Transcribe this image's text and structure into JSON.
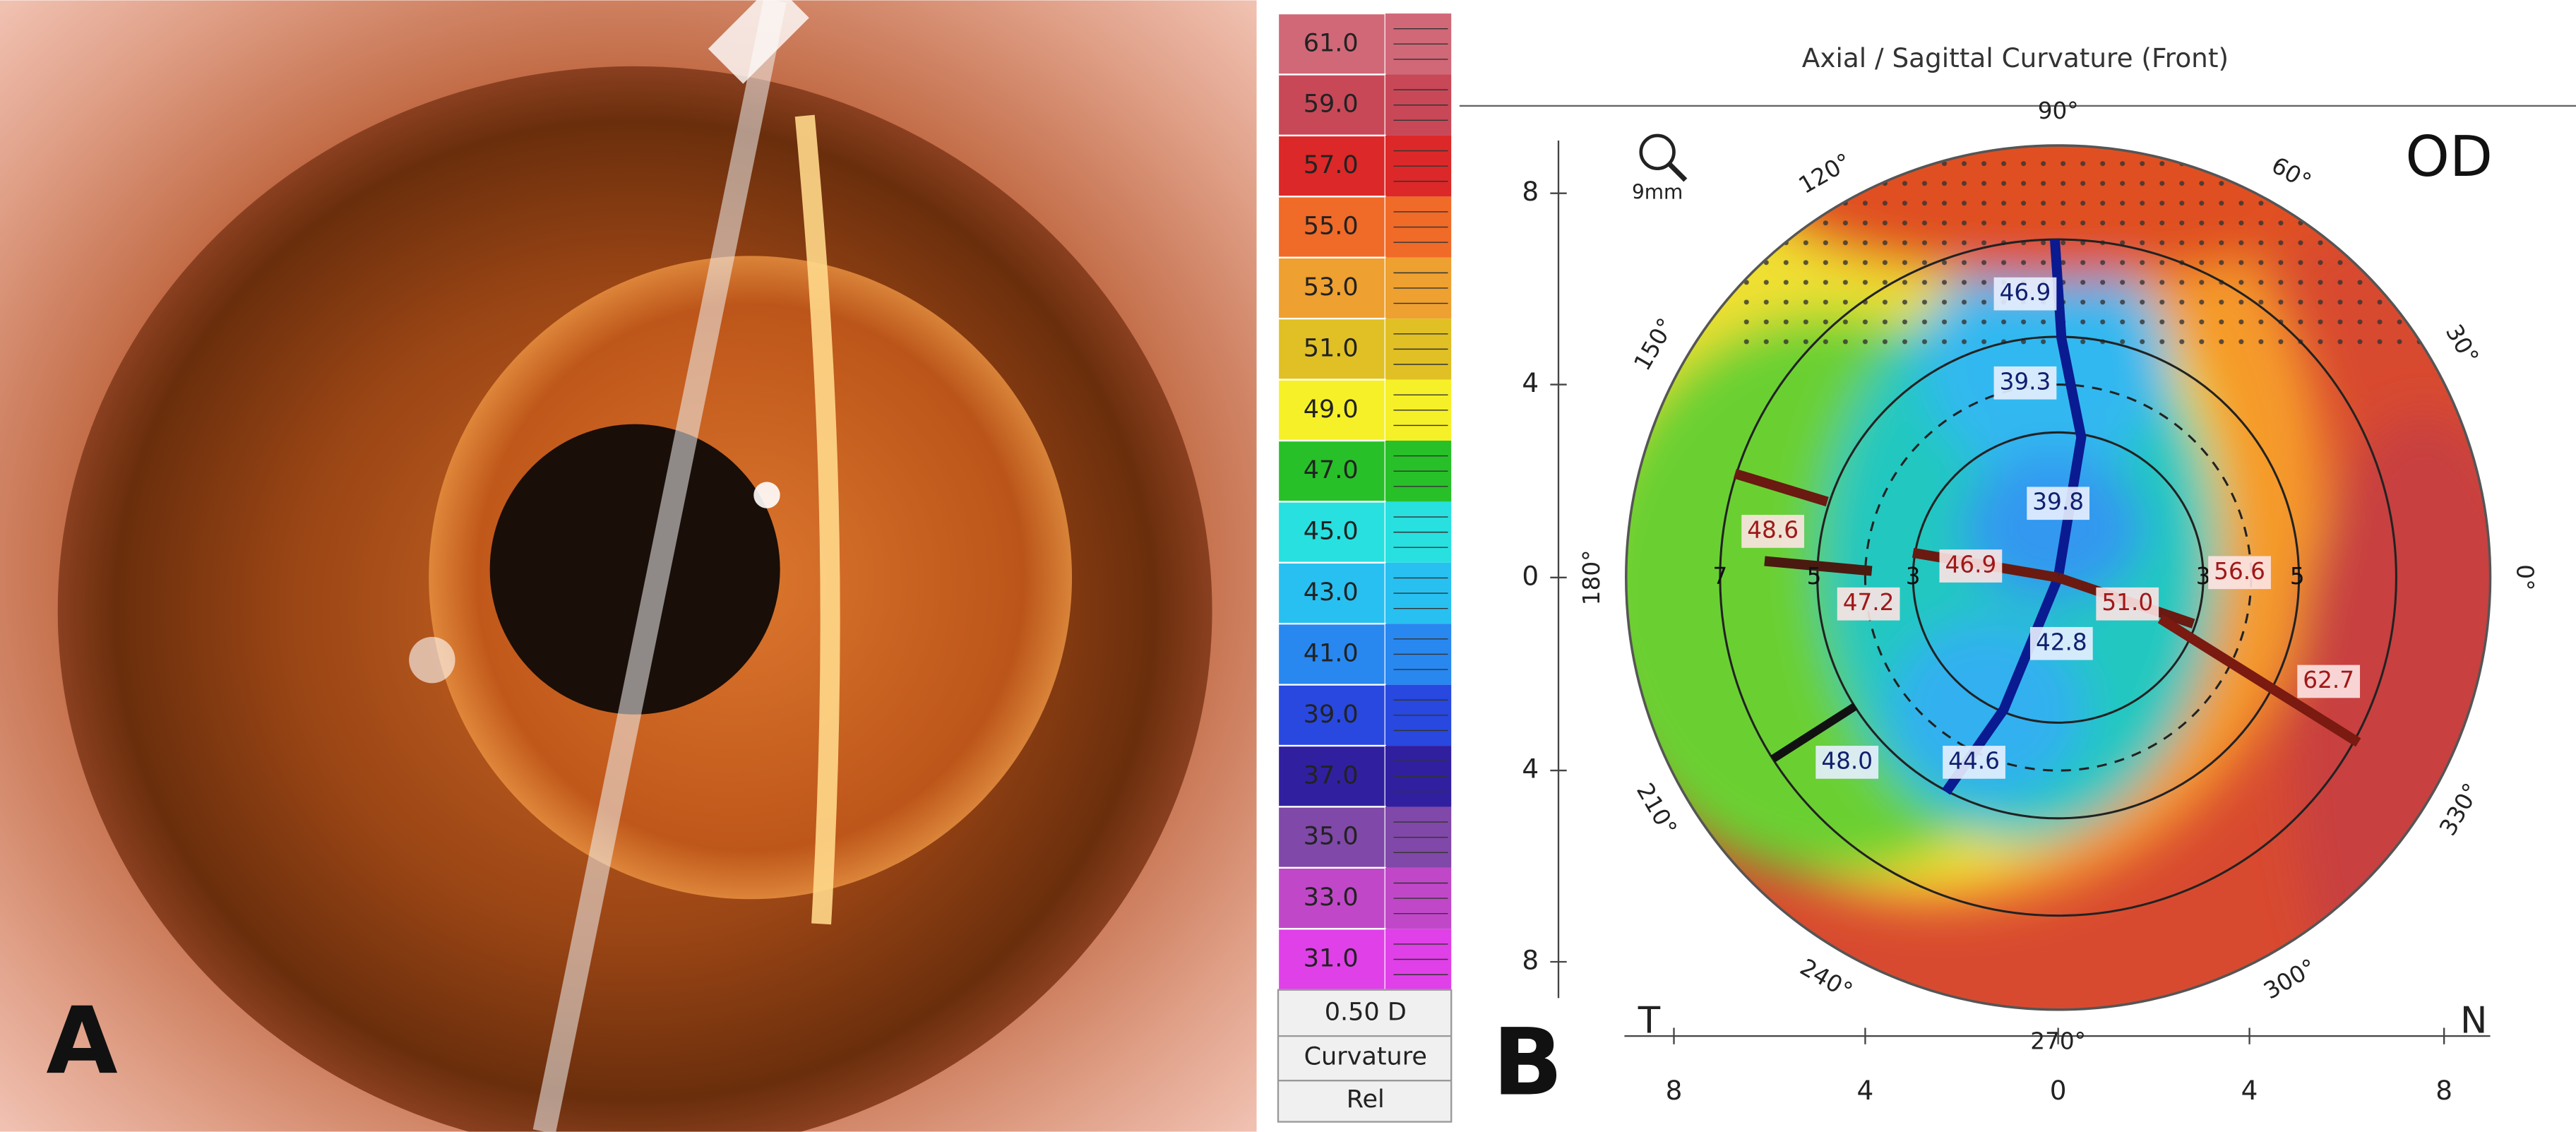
{
  "panel_a": {
    "label": "A"
  },
  "panel_b": {
    "label": "B",
    "title": "Axial / Sagittal Curvature (Front)",
    "zoom": "9mm",
    "eye": "OD",
    "scale": {
      "labels": [
        "61.0",
        "59.0",
        "57.0",
        "55.0",
        "53.0",
        "51.0",
        "49.0",
        "47.0",
        "45.0",
        "43.0",
        "41.0",
        "39.0",
        "37.0",
        "35.0",
        "33.0",
        "31.0"
      ],
      "step": "0.50 D",
      "type": "Curvature",
      "mode": "Rel"
    },
    "angles": [
      "90°",
      "120°",
      "60°",
      "150°",
      "30°",
      "180°",
      "0°",
      "210°",
      "330°",
      "240°",
      "300°",
      "270°"
    ],
    "y_axis": [
      "8",
      "4",
      "0",
      "4",
      "8"
    ],
    "x_axis": [
      "8",
      "4",
      "0",
      "4",
      "8"
    ],
    "left": "T",
    "right": "N",
    "rings": [
      "7",
      "5",
      "3",
      "3",
      "5"
    ],
    "readings": [
      "46.9",
      "39.3",
      "39.8",
      "48.6",
      "47.2",
      "46.9",
      "51.0",
      "56.6",
      "42.8",
      "62.7",
      "48.0",
      "44.6"
    ]
  }
}
